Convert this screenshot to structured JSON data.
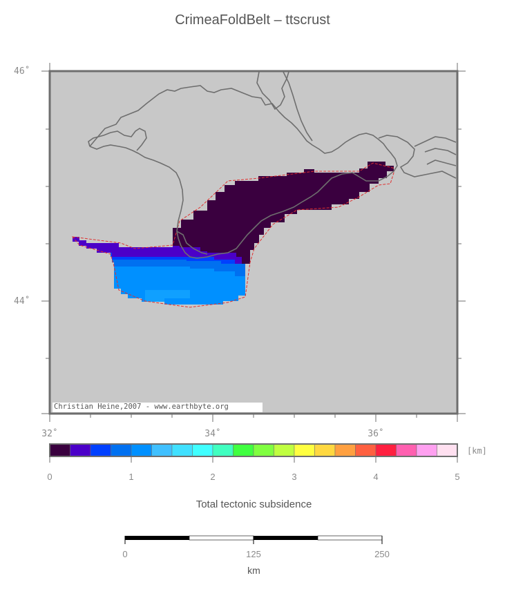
{
  "title": "CrimeaFoldBelt – ttscrust",
  "map": {
    "lat_labels": [
      {
        "text": "46˚",
        "value": 46
      },
      {
        "text": "44˚",
        "value": 44
      }
    ],
    "lon_labels": [
      {
        "text": "32˚",
        "value": 32
      },
      {
        "text": "34˚",
        "value": 34
      },
      {
        "text": "36˚",
        "value": 36
      }
    ],
    "credit": "Christian Heine,2007 - www.earthbyte.org",
    "colors": {
      "background": "#c8c8c8",
      "coastline": "#6e6e6e",
      "outline": "#e03030",
      "frame": "#6e6e6e"
    }
  },
  "colorbar": {
    "unit": "[km]",
    "tick_labels": [
      "0",
      "1",
      "2",
      "3",
      "4",
      "5"
    ],
    "colors": [
      "#3a003f",
      "#4b00c8",
      "#0040ff",
      "#0070f0",
      "#0090ff",
      "#40c0ff",
      "#40e0ff",
      "#40ffff",
      "#40ffc0",
      "#40ff40",
      "#80ff40",
      "#c0ff40",
      "#ffff40",
      "#ffd840",
      "#ffa040",
      "#ff6040",
      "#ff2040",
      "#ff60b0",
      "#ffa0f0",
      "#ffe0f0"
    ],
    "label": "Total tectonic subsidence"
  },
  "scalebar": {
    "tick_labels": [
      "0",
      "125",
      "250"
    ],
    "unit": "km"
  }
}
